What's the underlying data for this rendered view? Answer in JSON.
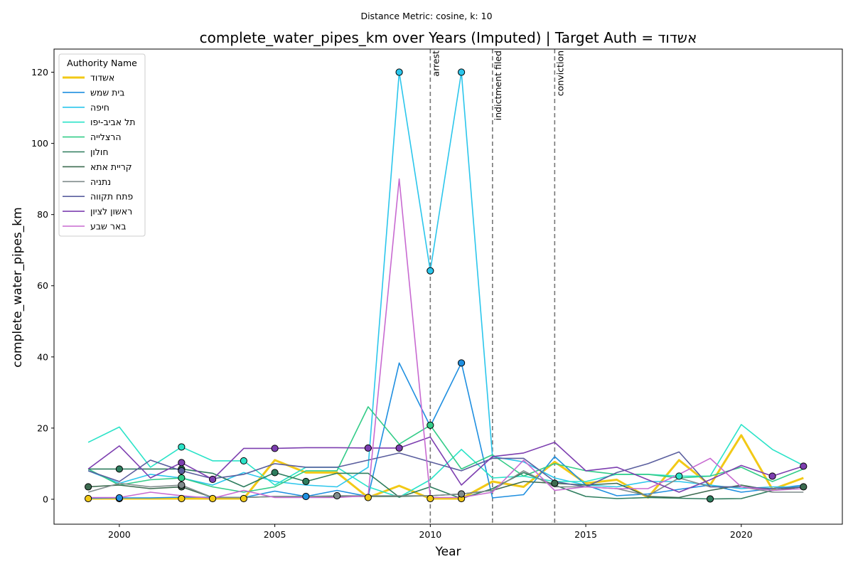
{
  "chart_data": {
    "type": "line",
    "suptitle": "Distance Metric: cosine, k: 10",
    "title": "complete_water_pipes_km over Years (Imputed) | Target Auth = אשדוד",
    "xlabel": "Year",
    "ylabel": "complete_water_pipes_km",
    "xlim": [
      1997.9,
      2023.25
    ],
    "ylim": [
      -7,
      126.5
    ],
    "xticks": [
      2000,
      2005,
      2010,
      2015,
      2020
    ],
    "yticks": [
      0,
      20,
      40,
      60,
      80,
      100,
      120
    ],
    "legend_title": "Authority Name",
    "legend_position": "top-left",
    "grid": false,
    "events": [
      {
        "x": 2010,
        "label": "arrest"
      },
      {
        "x": 2012,
        "label": "indictment filed"
      },
      {
        "x": 2014,
        "label": "conviction"
      }
    ],
    "x": [
      1999,
      2000,
      2001,
      2002,
      2003,
      2004,
      2005,
      2006,
      2007,
      2008,
      2009,
      2010,
      2011,
      2012,
      2013,
      2014,
      2015,
      2016,
      2017,
      2018,
      2019,
      2020,
      2021,
      2022
    ],
    "series": [
      {
        "name": "אשדוד",
        "color": "#f2c916",
        "linewidth": 3,
        "values": [
          0.2,
          0.2,
          0.2,
          0.2,
          0.2,
          0.2,
          11.0,
          7.5,
          7.5,
          0.5,
          3.8,
          0.2,
          0.2,
          5.0,
          3.5,
          10.5,
          4.5,
          5.5,
          0.5,
          11.0,
          4.0,
          18.0,
          2.8,
          6.0
        ],
        "markers": [
          0,
          1,
          3,
          4,
          5,
          9,
          11,
          12
        ]
      },
      {
        "name": "בית שמש",
        "color": "#1f8fe0",
        "linewidth": 1.6,
        "values": [
          0.3,
          0.4,
          0.4,
          0.6,
          0.6,
          0.5,
          2.3,
          0.8,
          2.5,
          0.8,
          38.3,
          20.5,
          38.3,
          0.4,
          1.3,
          12.0,
          4.0,
          1.0,
          1.5,
          2.8,
          4.0,
          2.0,
          3.0,
          4.0
        ],
        "markers": [
          1,
          7,
          12
        ]
      },
      {
        "name": "חיפה",
        "color": "#2bc6ec",
        "linewidth": 1.6,
        "values": [
          8.0,
          4.5,
          7.0,
          6.0,
          4.0,
          7.5,
          5.0,
          4.0,
          3.5,
          9.0,
          120.0,
          64.2,
          120.0,
          12.0,
          10.5,
          6.0,
          4.0,
          3.5,
          5.0,
          5.0,
          4.0,
          3.0,
          3.5,
          3.5
        ],
        "markers": [
          10,
          11,
          12
        ]
      },
      {
        "name": "תל אביב-יפו",
        "color": "#2be3c8",
        "linewidth": 1.6,
        "values": [
          16.0,
          20.3,
          9.0,
          14.7,
          10.8,
          10.8,
          4.0,
          9.0,
          9.0,
          3.5,
          0.6,
          5.5,
          14.0,
          6.0,
          6.5,
          5.0,
          5.0,
          7.0,
          7.0,
          6.5,
          6.5,
          21.0,
          14.0,
          9.5
        ],
        "markers": [
          3,
          5,
          19
        ]
      },
      {
        "name": "הרצלייה",
        "color": "#33cc88",
        "linewidth": 1.6,
        "values": [
          8.5,
          4.0,
          5.5,
          6.0,
          3.5,
          2.0,
          3.5,
          8.0,
          8.0,
          26.0,
          15.5,
          20.8,
          8.5,
          12.5,
          6.5,
          10.0,
          8.0,
          7.0,
          7.0,
          6.0,
          6.5,
          9.0,
          5.0,
          8.5
        ],
        "markers": [
          3,
          11
        ]
      },
      {
        "name": "חולון",
        "color": "#2e7d5e",
        "linewidth": 1.6,
        "values": [
          8.5,
          8.5,
          8.5,
          8.5,
          7.3,
          3.5,
          7.5,
          5.0,
          7.3,
          7.3,
          0.6,
          3.5,
          0.2,
          3.0,
          7.5,
          4.0,
          0.8,
          0.2,
          0.5,
          0.3,
          0.1,
          0.2,
          2.5,
          3.5
        ],
        "markers": [
          1,
          3,
          6,
          7,
          20
        ]
      },
      {
        "name": "קריית אתא",
        "color": "#3d6b50",
        "linewidth": 1.6,
        "values": [
          3.5,
          4.0,
          3.0,
          3.5,
          0.5,
          0.5,
          0.8,
          0.8,
          0.8,
          0.8,
          0.8,
          1.0,
          1.5,
          2.5,
          5.0,
          4.5,
          4.0,
          4.5,
          0.8,
          0.5,
          2.5,
          4.0,
          2.5,
          3.5
        ],
        "markers": [
          0,
          3,
          15,
          23
        ]
      },
      {
        "name": "נתניה",
        "color": "#7f8b8b",
        "linewidth": 1.6,
        "values": [
          2.0,
          4.5,
          3.5,
          4.0,
          0.5,
          0.5,
          0.8,
          0.8,
          1.0,
          1.0,
          1.0,
          1.0,
          1.5,
          2.5,
          8.0,
          3.5,
          3.5,
          3.0,
          1.0,
          6.0,
          3.5,
          3.5,
          2.0,
          2.0
        ],
        "markers": [
          3,
          8,
          12
        ]
      },
      {
        "name": "פתח תקווה",
        "color": "#5a5e9e",
        "linewidth": 1.6,
        "values": [
          8.0,
          5.0,
          11.0,
          8.0,
          5.8,
          7.0,
          10.0,
          9.0,
          9.0,
          11.0,
          13.0,
          10.5,
          8.0,
          11.5,
          11.5,
          5.0,
          3.5,
          7.5,
          10.0,
          13.3,
          3.5,
          3.5,
          3.0,
          3.5
        ],
        "markers": [
          3
        ]
      },
      {
        "name": "ראשון לציון",
        "color": "#7d3fb0",
        "linewidth": 1.6,
        "values": [
          8.5,
          15.0,
          6.0,
          10.3,
          5.6,
          14.3,
          14.3,
          14.5,
          14.5,
          14.4,
          14.4,
          17.5,
          4.0,
          12.0,
          13.0,
          16.0,
          8.0,
          9.0,
          5.5,
          2.0,
          5.5,
          9.5,
          6.5,
          9.3
        ],
        "markers": [
          3,
          4,
          6,
          9,
          10,
          22,
          23
        ]
      },
      {
        "name": "באר שבע",
        "color": "#c86ad1",
        "linewidth": 1.6,
        "values": [
          0.5,
          0.5,
          2.0,
          1.0,
          0.3,
          2.5,
          0.5,
          0.5,
          0.5,
          1.0,
          90.0,
          0.5,
          0.5,
          2.0,
          11.0,
          2.5,
          3.5,
          3.0,
          3.0,
          7.0,
          11.5,
          3.5,
          2.5,
          3.0
        ],
        "markers": []
      }
    ]
  }
}
